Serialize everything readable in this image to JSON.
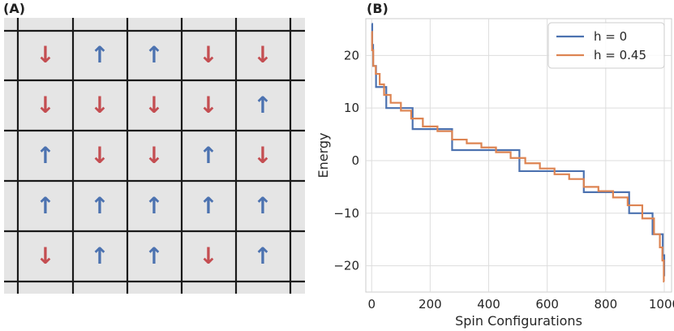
{
  "panel_a": {
    "label": "(A)",
    "grid_rows": 5,
    "grid_cols": 5,
    "spins": [
      [
        "down",
        "up",
        "up",
        "down",
        "down"
      ],
      [
        "down",
        "down",
        "down",
        "down",
        "up"
      ],
      [
        "up",
        "down",
        "down",
        "up",
        "down"
      ],
      [
        "up",
        "up",
        "up",
        "up",
        "up"
      ],
      [
        "down",
        "up",
        "up",
        "down",
        "up"
      ]
    ],
    "glyphs": {
      "up": "↑",
      "down": "↓"
    },
    "colors": {
      "up": "#4c72b0",
      "down": "#c44e52",
      "background": "#e5e5e5",
      "grid": "#1a1a1a"
    }
  },
  "panel_b": {
    "label": "(B)"
  },
  "chart_data": {
    "type": "line",
    "xlabel": "Spin Configurations",
    "ylabel": "Energy",
    "xlim": [
      -20,
      1025
    ],
    "ylim": [
      -25,
      27
    ],
    "xticks": [
      0,
      200,
      400,
      600,
      800,
      1000
    ],
    "yticks": [
      -20,
      -10,
      0,
      10,
      20
    ],
    "grid": true,
    "legend_position": "top-right",
    "series": [
      {
        "name": "h = 0",
        "color": "#4c72b0",
        "step": true,
        "points": [
          [
            0,
            26
          ],
          [
            2,
            22
          ],
          [
            5,
            18
          ],
          [
            15,
            14
          ],
          [
            50,
            10
          ],
          [
            140,
            6
          ],
          [
            275,
            2
          ],
          [
            505,
            -2
          ],
          [
            725,
            -6
          ],
          [
            880,
            -10
          ],
          [
            960,
            -14
          ],
          [
            995,
            -18
          ],
          [
            1000,
            -22
          ]
        ]
      },
      {
        "name": "h = 0.45",
        "color": "#dd8452",
        "step": false,
        "points": [
          [
            0,
            24.5
          ],
          [
            3,
            21
          ],
          [
            8,
            18
          ],
          [
            20,
            16.5
          ],
          [
            35,
            14.5
          ],
          [
            50,
            12.5
          ],
          [
            80,
            11
          ],
          [
            120,
            9.5
          ],
          [
            150,
            8
          ],
          [
            200,
            6.5
          ],
          [
            250,
            5.6
          ],
          [
            300,
            4
          ],
          [
            350,
            3.3
          ],
          [
            400,
            2.5
          ],
          [
            450,
            1.6
          ],
          [
            500,
            0.5
          ],
          [
            550,
            -0.5
          ],
          [
            600,
            -1.5
          ],
          [
            650,
            -2.6
          ],
          [
            700,
            -3.5
          ],
          [
            750,
            -5
          ],
          [
            800,
            -5.8
          ],
          [
            850,
            -7
          ],
          [
            900,
            -8.5
          ],
          [
            950,
            -11
          ],
          [
            980,
            -14
          ],
          [
            990,
            -16.5
          ],
          [
            997,
            -19
          ],
          [
            1000,
            -23
          ]
        ]
      }
    ]
  }
}
